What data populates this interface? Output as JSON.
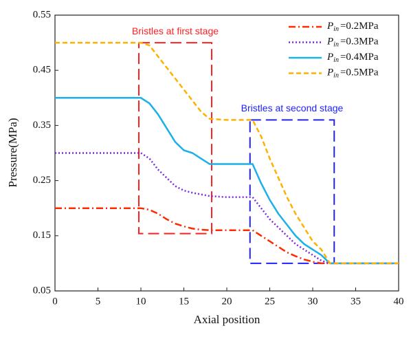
{
  "chart_data": {
    "type": "line",
    "x_label": "Axial position",
    "y_label": "Pressure(MPa)",
    "xlim": [
      0,
      40
    ],
    "ylim": [
      0.05,
      0.55
    ],
    "xticks": [
      0,
      5,
      10,
      15,
      20,
      25,
      30,
      35,
      40
    ],
    "yticks": [
      0.05,
      0.15,
      0.25,
      0.35,
      0.45,
      0.55
    ],
    "legend_position": "upper right",
    "legend_symbol": {
      "base": "P",
      "sub": "in"
    },
    "x": [
      0,
      5,
      10,
      11,
      12,
      13,
      14,
      15,
      16,
      17,
      18,
      20,
      22,
      23,
      24,
      25,
      26,
      27,
      28,
      29,
      30,
      31,
      32,
      35,
      40
    ],
    "series": [
      {
        "name": "=0.2MPa",
        "color": "#ff2a00",
        "dash": "10 4 2 4",
        "values": [
          0.2,
          0.2,
          0.2,
          0.197,
          0.19,
          0.18,
          0.172,
          0.167,
          0.163,
          0.161,
          0.16,
          0.16,
          0.16,
          0.16,
          0.15,
          0.14,
          0.13,
          0.12,
          0.113,
          0.107,
          0.103,
          0.1,
          0.1,
          0.1,
          0.1
        ]
      },
      {
        "name": "=0.3MPa",
        "color": "#7a2be0",
        "dash": "2 3",
        "values": [
          0.3,
          0.3,
          0.3,
          0.29,
          0.27,
          0.255,
          0.24,
          0.232,
          0.228,
          0.225,
          0.222,
          0.22,
          0.22,
          0.22,
          0.2,
          0.18,
          0.165,
          0.15,
          0.135,
          0.125,
          0.115,
          0.105,
          0.1,
          0.1,
          0.1
        ]
      },
      {
        "name": "=0.4MPa",
        "color": "#1ab0e8",
        "dash": "none",
        "values": [
          0.4,
          0.4,
          0.4,
          0.39,
          0.37,
          0.345,
          0.32,
          0.305,
          0.3,
          0.29,
          0.28,
          0.28,
          0.28,
          0.28,
          0.245,
          0.215,
          0.19,
          0.17,
          0.15,
          0.135,
          0.125,
          0.115,
          0.1,
          0.1,
          0.1
        ]
      },
      {
        "name": "=0.5MPa",
        "color": "#ffb000",
        "dash": "7 4",
        "values": [
          0.5,
          0.5,
          0.5,
          0.495,
          0.475,
          0.455,
          0.435,
          0.415,
          0.395,
          0.375,
          0.362,
          0.36,
          0.36,
          0.36,
          0.33,
          0.29,
          0.255,
          0.22,
          0.19,
          0.165,
          0.14,
          0.125,
          0.1,
          0.1,
          0.1
        ]
      }
    ],
    "annotations": [
      {
        "text": "Bristles at first stage",
        "color": "#ff2020",
        "x": [
          9.76,
          18.24
        ],
        "y": [
          0.154,
          0.5
        ]
      },
      {
        "text": "Bristles at second stage",
        "color": "#2020ff",
        "x": [
          22.7,
          32.5
        ],
        "y": [
          0.1,
          0.36
        ]
      }
    ]
  }
}
